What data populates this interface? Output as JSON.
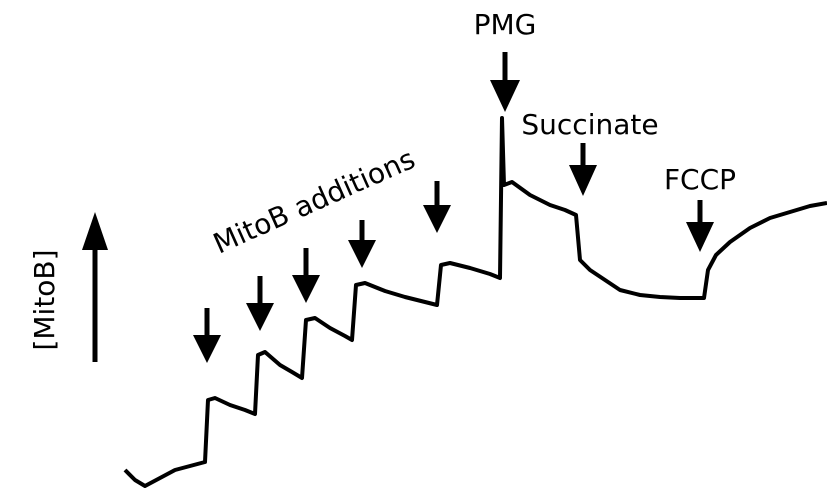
{
  "y_label": "[MitoB]",
  "annotations": {
    "mitob_additions": "MitoB additions",
    "pmg": "PMG",
    "succinate": "Succinate",
    "fccp": "FCCP"
  }
}
